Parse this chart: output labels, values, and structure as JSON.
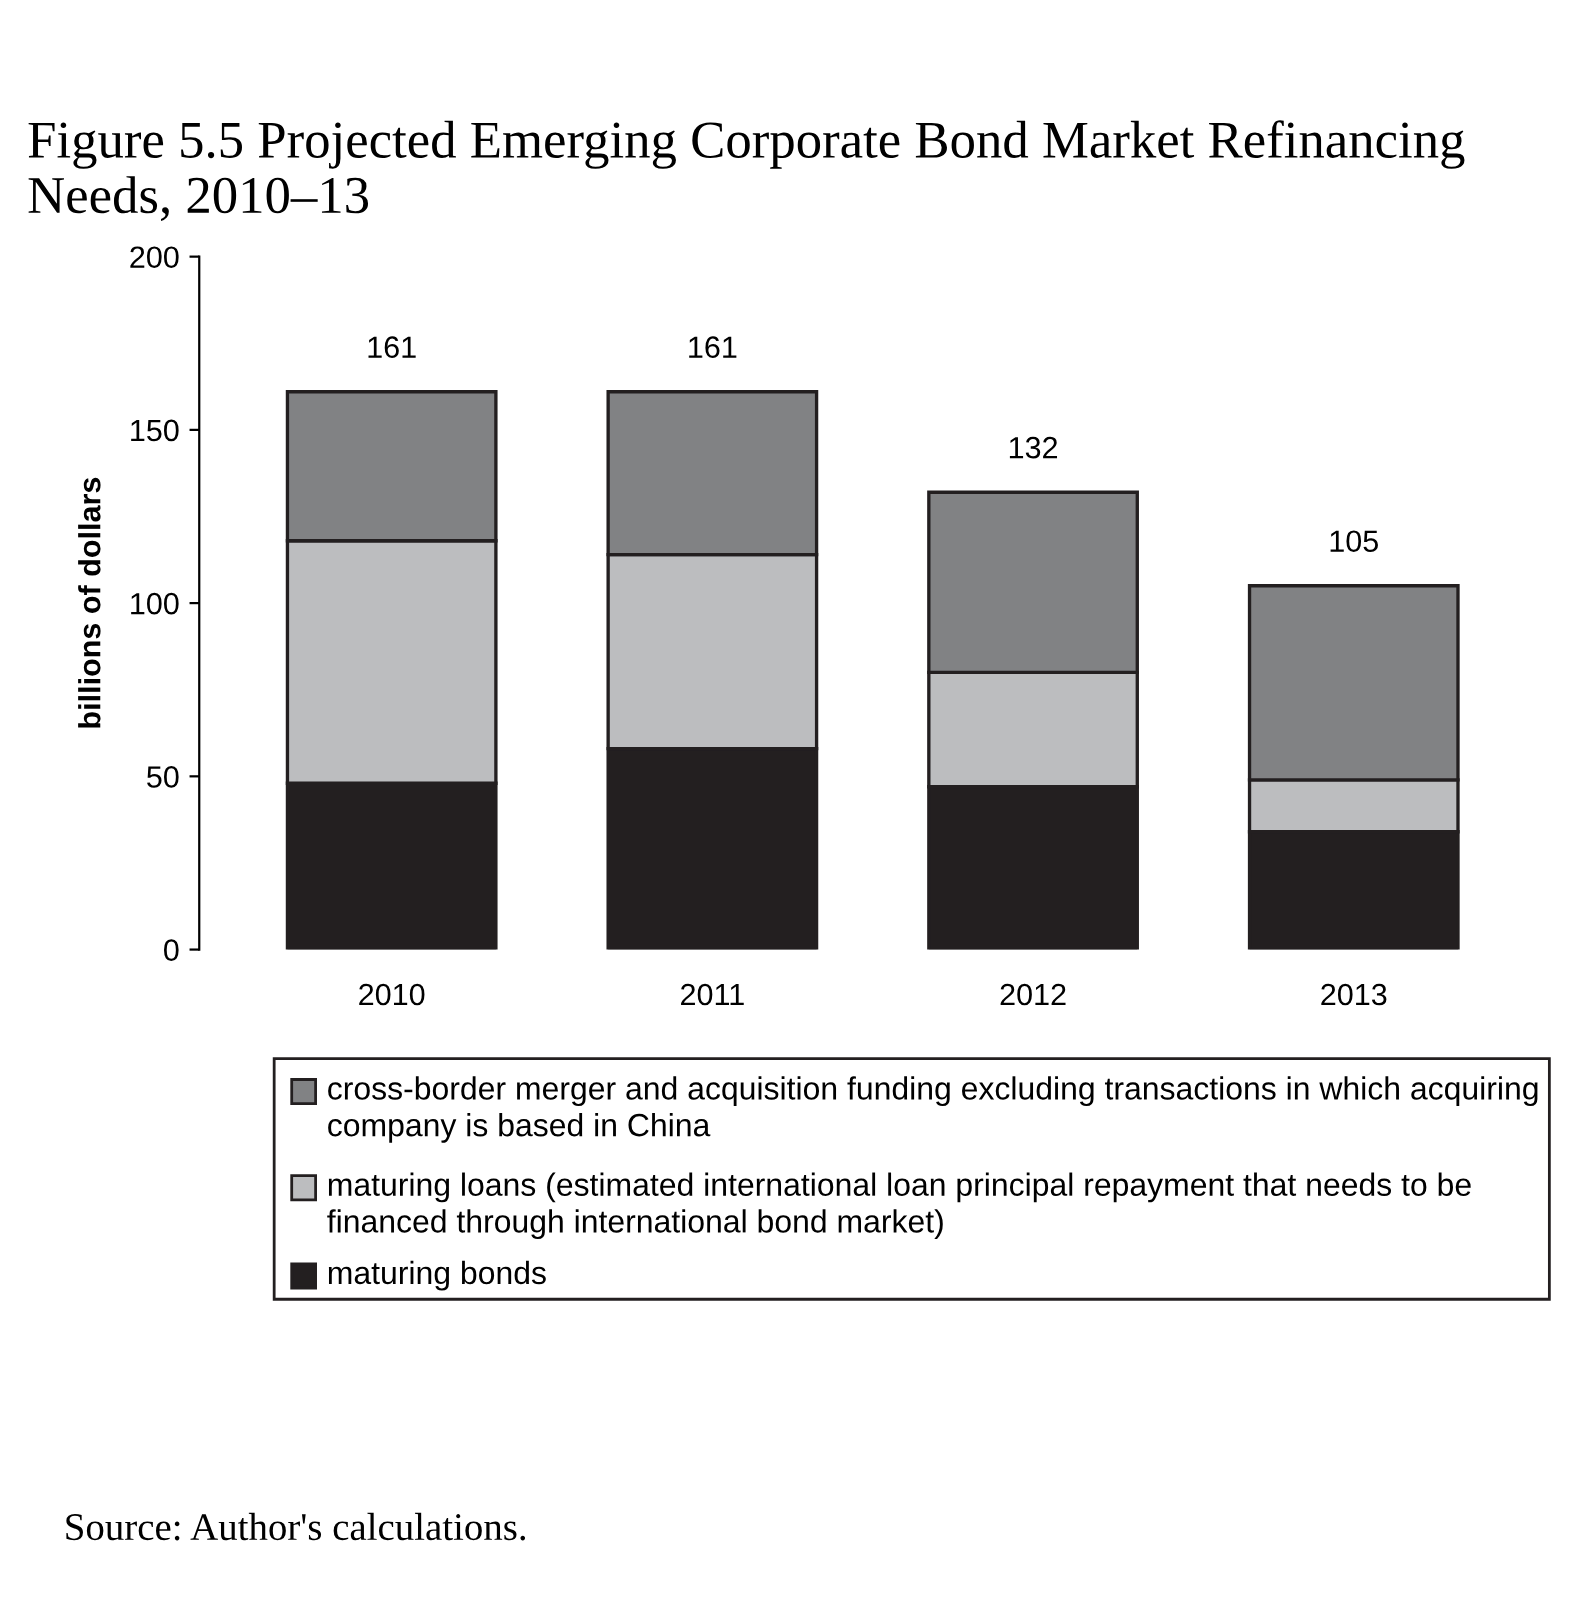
{
  "chart_data": {
    "type": "bar",
    "title": "Figure 5.5 Projected Emerging Corporate Bond Market Refinancing Needs, 2010–13",
    "ylabel": "billions of dollars",
    "categories": [
      "2010",
      "2011",
      "2012",
      "2013"
    ],
    "stacked": true,
    "series": [
      {
        "name": "maturing bonds",
        "color": "#231f20",
        "values": [
          48,
          58,
          47,
          34
        ]
      },
      {
        "name": "maturing loans (estimated international loan principal repayment that needs to be financed through international bond market)",
        "color": "#bcbdbf",
        "values": [
          70,
          56,
          33,
          15
        ]
      },
      {
        "name": "cross-border merger and acquisition funding excluding transactions in which acquiring company is based in China",
        "color": "#818284",
        "values": [
          43,
          47,
          52,
          56
        ]
      }
    ],
    "totals": [
      "161",
      "161",
      "132",
      "105"
    ],
    "ylim": [
      0,
      200
    ],
    "yticks": [
      0,
      50,
      100,
      150,
      200
    ],
    "grid": false,
    "legend": "bottom",
    "annotations": [
      "Source: Author's calculations."
    ]
  }
}
